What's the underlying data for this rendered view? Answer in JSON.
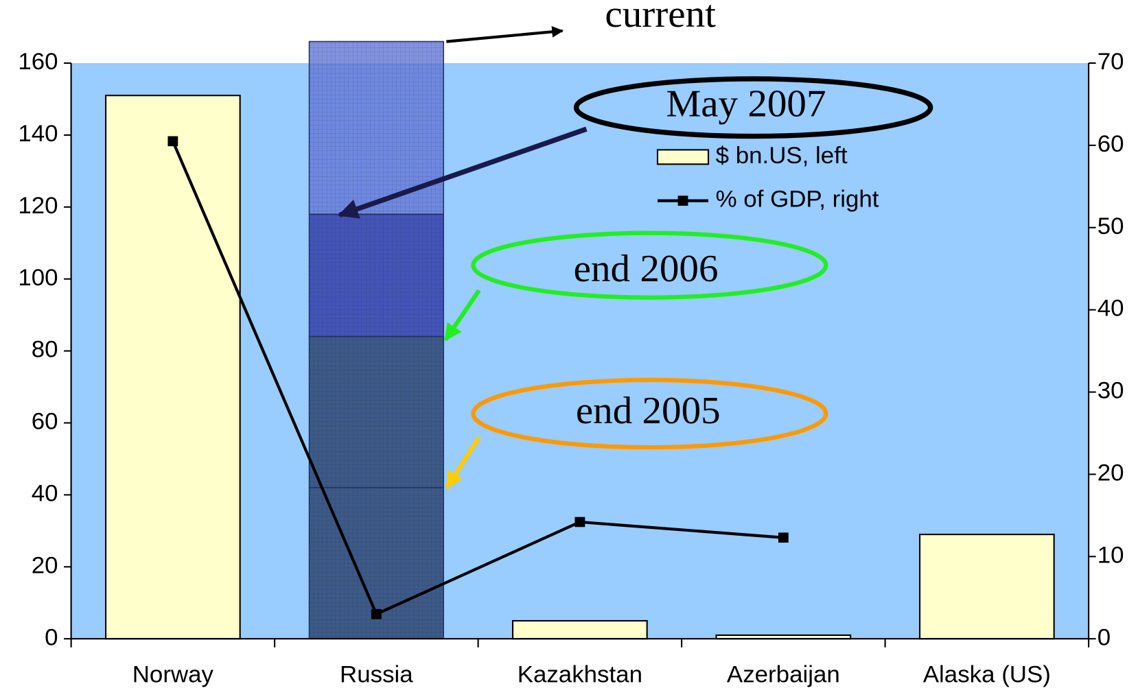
{
  "chart_data": {
    "type": "bar",
    "categories": [
      "Norway",
      "Russia",
      "Kazakhstan",
      "Azerbaijan",
      "Alaska (US)"
    ],
    "series": [
      {
        "name": "$ bn.US, left",
        "color": "#ffffcc",
        "values": [
          151,
          null,
          5,
          1,
          29
        ]
      },
      {
        "name": "% of GDP, right",
        "color": "#000000",
        "axis": "y2",
        "values": [
          60.5,
          3,
          14.2,
          12.3,
          null
        ]
      }
    ],
    "russia_stack": [
      {
        "label": "end 2005",
        "value": 42,
        "color": "#3d5a88"
      },
      {
        "label": "end 2006",
        "value": 42,
        "color": "#3d5a88"
      },
      {
        "label": "May 2007",
        "value": 34,
        "color": "#4455b8"
      },
      {
        "label": "current",
        "value": 48,
        "color": "#6478d8"
      }
    ],
    "plot_background": "#99ccff",
    "ylim": [
      0,
      160
    ],
    "yticks": [
      0,
      20,
      40,
      60,
      80,
      100,
      120,
      140,
      160
    ],
    "y2lim": [
      0,
      70
    ],
    "y2ticks": [
      0,
      10,
      20,
      30,
      40,
      50,
      60,
      70
    ]
  }
}
